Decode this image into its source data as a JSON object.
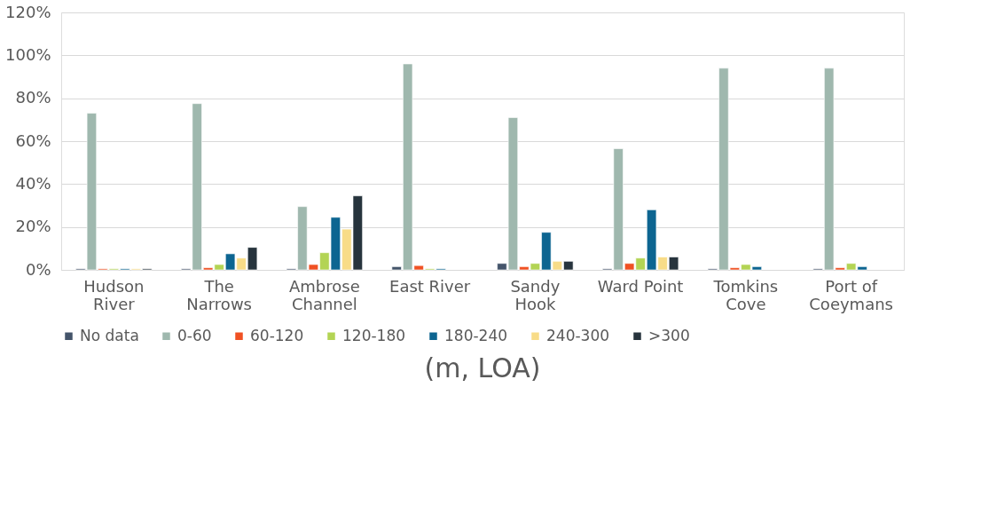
{
  "chart_data": {
    "type": "bar",
    "categories": [
      "Hudson\nRiver",
      "The\nNarrows",
      "Ambrose\nChannel",
      "East  River",
      "Sandy\nHook",
      "Ward Point",
      "Tomkins\nCove",
      "Port of\nCoeymans"
    ],
    "series": [
      {
        "name": "No data",
        "color": "#44546a",
        "values": [
          0.5,
          0.5,
          0.5,
          1.5,
          3,
          0.5,
          0.5,
          0.5
        ]
      },
      {
        "name": "0-60",
        "color": "#9fb8ae",
        "values": [
          73,
          77.5,
          29.5,
          96,
          71,
          56.5,
          94,
          94
        ]
      },
      {
        "name": "60-120",
        "color": "#f05123",
        "values": [
          0.5,
          1,
          2.5,
          2,
          1.5,
          3,
          1,
          1
        ]
      },
      {
        "name": "120-180",
        "color": "#b3d454",
        "values": [
          0.5,
          2.5,
          8,
          0.5,
          3,
          5.5,
          2.5,
          3
        ]
      },
      {
        "name": "180-240",
        "color": "#0d6591",
        "values": [
          0.5,
          7.5,
          24.5,
          0.5,
          17.5,
          28,
          1.5,
          1.5
        ]
      },
      {
        "name": "240-300",
        "color": "#f8dc88",
        "values": [
          0.5,
          5.5,
          19,
          null,
          4,
          6,
          null,
          null
        ]
      },
      {
        "name": ">300",
        "color": "#27343d",
        "values": [
          0.5,
          10.5,
          34.5,
          null,
          4,
          6,
          null,
          null
        ]
      }
    ],
    "ylim": [
      0,
      120
    ],
    "yticks": [
      {
        "value": 0,
        "label": "0%"
      },
      {
        "value": 20,
        "label": "20%"
      },
      {
        "value": 40,
        "label": "40%"
      },
      {
        "value": 60,
        "label": "60%"
      },
      {
        "value": 80,
        "label": "80%"
      },
      {
        "value": 100,
        "label": "100%"
      },
      {
        "value": 120,
        "label": "120%"
      }
    ],
    "grid": "y",
    "legend": "bottom",
    "annotations": [
      "(m, LOA)"
    ]
  }
}
